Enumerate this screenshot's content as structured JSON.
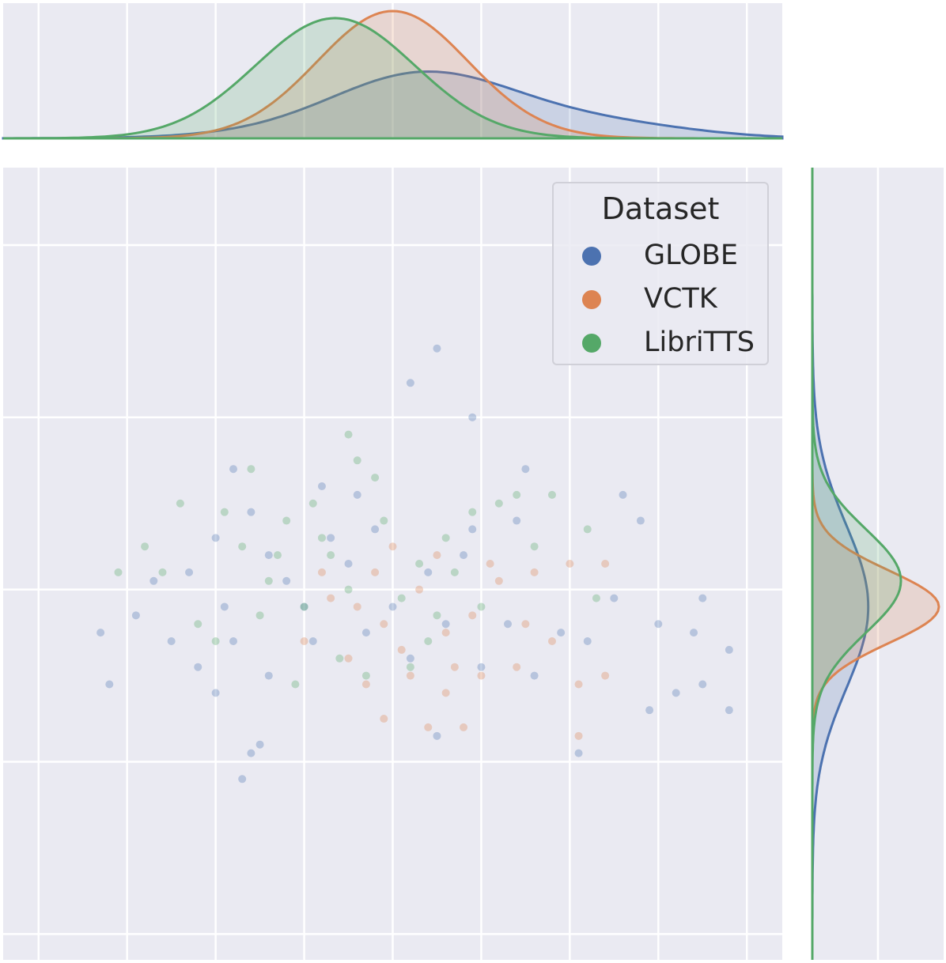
{
  "chart_data": {
    "type": "scatter",
    "subtype": "jointplot with marginal KDE",
    "title": "",
    "xlabel": "",
    "ylabel": "",
    "xlim": [
      -4.4,
      4.4
    ],
    "ylim": [
      -4.3,
      4.9
    ],
    "grid": true,
    "tick_labels_shown": false,
    "legend": {
      "title": "Dataset",
      "placement": "top-right"
    },
    "series": [
      {
        "name": "GLOBE",
        "color": "#4c72b0",
        "marginal_x": {
          "mean": -0.25,
          "sd": 1.35,
          "skew": "right"
        },
        "marginal_y": {
          "mean": -0.2,
          "sd": 0.95
        },
        "points": [
          [
            0.5,
            2.8
          ],
          [
            0.2,
            2.4
          ],
          [
            -1.8,
            1.4
          ],
          [
            -0.8,
            1.2
          ],
          [
            1.4,
            0.8
          ],
          [
            2.6,
            1.1
          ],
          [
            1.5,
            1.4
          ],
          [
            0.9,
            2.0
          ],
          [
            -2.3,
            0.2
          ],
          [
            -2.0,
            0.6
          ],
          [
            -1.6,
            0.9
          ],
          [
            -0.4,
            1.1
          ],
          [
            2.8,
            0.8
          ],
          [
            3.5,
            -0.1
          ],
          [
            3.8,
            -0.7
          ],
          [
            3.5,
            -1.1
          ],
          [
            3.2,
            -1.2
          ],
          [
            2.9,
            -1.4
          ],
          [
            3.8,
            -1.4
          ],
          [
            3.4,
            -0.5
          ],
          [
            3.0,
            -0.4
          ],
          [
            2.5,
            -0.1
          ],
          [
            -3.3,
            -0.5
          ],
          [
            -3.2,
            -1.1
          ],
          [
            -2.9,
            -0.3
          ],
          [
            -2.7,
            0.1
          ],
          [
            -1.5,
            -1.8
          ],
          [
            -1.6,
            -1.9
          ],
          [
            -1.7,
            -2.2
          ],
          [
            0.5,
            -1.7
          ],
          [
            2.1,
            -1.9
          ],
          [
            -1.4,
            -1.0
          ],
          [
            -2.0,
            -1.2
          ],
          [
            1.9,
            -0.5
          ],
          [
            -1.0,
            -0.2
          ],
          [
            -0.5,
            0.3
          ],
          [
            0.8,
            0.4
          ],
          [
            -1.2,
            0.1
          ],
          [
            -0.3,
            -0.5
          ],
          [
            0.2,
            -0.8
          ],
          [
            1.0,
            -0.9
          ],
          [
            -1.8,
            -0.6
          ],
          [
            -2.2,
            -0.9
          ],
          [
            1.3,
            -0.4
          ],
          [
            -0.7,
            0.6
          ],
          [
            0.4,
            0.2
          ],
          [
            -1.4,
            0.4
          ],
          [
            0.9,
            0.7
          ],
          [
            -0.2,
            0.7
          ],
          [
            1.6,
            -1.0
          ],
          [
            -1.9,
            -0.2
          ],
          [
            2.2,
            -0.6
          ],
          [
            -2.5,
            -0.6
          ],
          [
            0.0,
            -0.2
          ],
          [
            -0.9,
            -0.6
          ],
          [
            0.6,
            -0.4
          ]
        ]
      },
      {
        "name": "VCTK",
        "color": "#dd8452",
        "marginal_x": {
          "mean": 0.0,
          "sd": 0.85
        },
        "marginal_y": {
          "mean": -0.2,
          "sd": 0.42
        },
        "points": [
          [
            0.3,
            0.0
          ],
          [
            -0.4,
            -0.2
          ],
          [
            0.6,
            -0.5
          ],
          [
            -0.2,
            0.2
          ],
          [
            0.9,
            -0.3
          ],
          [
            0.1,
            -0.7
          ],
          [
            -0.7,
            -0.1
          ],
          [
            1.2,
            0.1
          ],
          [
            0.5,
            0.4
          ],
          [
            -0.1,
            -0.4
          ],
          [
            1.6,
            0.2
          ],
          [
            2.0,
            0.3
          ],
          [
            1.8,
            -0.6
          ],
          [
            1.4,
            -0.9
          ],
          [
            0.7,
            -0.9
          ],
          [
            0.2,
            -1.0
          ],
          [
            -0.5,
            -0.8
          ],
          [
            -1.0,
            -0.6
          ],
          [
            2.4,
            0.3
          ],
          [
            2.4,
            -1.0
          ],
          [
            2.1,
            -1.1
          ],
          [
            1.0,
            -1.0
          ],
          [
            0.6,
            -1.2
          ],
          [
            -0.3,
            -1.1
          ],
          [
            2.1,
            -1.7
          ],
          [
            0.8,
            -1.6
          ],
          [
            0.4,
            -1.6
          ],
          [
            -0.1,
            -1.5
          ],
          [
            1.5,
            -0.4
          ],
          [
            1.1,
            0.3
          ],
          [
            -0.8,
            0.2
          ],
          [
            0.0,
            0.5
          ]
        ]
      },
      {
        "name": "LibriTTS",
        "color": "#55a868",
        "marginal_x": {
          "mean": -0.65,
          "sd": 0.9
        },
        "marginal_y": {
          "mean": 0.1,
          "sd": 0.6
        },
        "points": [
          [
            -0.4,
            1.5
          ],
          [
            -0.2,
            1.3
          ],
          [
            -0.9,
            1.0
          ],
          [
            -1.2,
            0.8
          ],
          [
            -0.7,
            0.4
          ],
          [
            -0.5,
            0.0
          ],
          [
            0.3,
            0.3
          ],
          [
            0.1,
            -0.1
          ],
          [
            -1.0,
            -0.2
          ],
          [
            -1.4,
            0.1
          ],
          [
            -1.7,
            0.5
          ],
          [
            -1.9,
            0.9
          ],
          [
            0.6,
            0.6
          ],
          [
            0.9,
            0.9
          ],
          [
            1.2,
            1.0
          ],
          [
            1.4,
            1.1
          ],
          [
            1.8,
            1.1
          ],
          [
            1.6,
            0.5
          ],
          [
            -2.2,
            -0.4
          ],
          [
            -2.0,
            -0.6
          ],
          [
            -0.6,
            -0.8
          ],
          [
            0.4,
            -0.6
          ],
          [
            0.2,
            -0.9
          ],
          [
            -0.3,
            -1.0
          ],
          [
            -1.1,
            -1.1
          ],
          [
            -1.5,
            -0.3
          ],
          [
            0.7,
            0.2
          ],
          [
            1.0,
            -0.2
          ],
          [
            -0.8,
            0.6
          ],
          [
            -0.1,
            0.8
          ],
          [
            -1.3,
            0.4
          ],
          [
            0.5,
            -0.3
          ],
          [
            -2.8,
            0.5
          ],
          [
            -2.6,
            0.2
          ],
          [
            -3.1,
            0.2
          ],
          [
            2.2,
            0.7
          ],
          [
            2.3,
            -0.1
          ],
          [
            -0.5,
            1.8
          ],
          [
            -1.6,
            1.4
          ],
          [
            -2.4,
            1.0
          ]
        ]
      }
    ]
  }
}
